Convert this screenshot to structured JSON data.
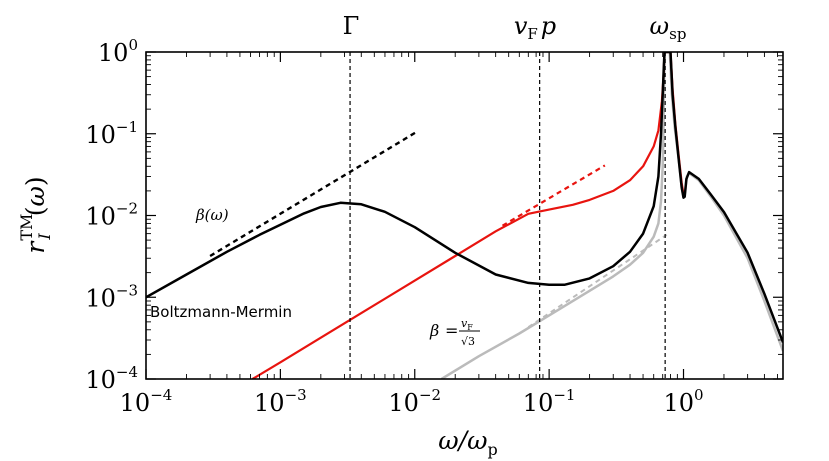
{
  "chart_data": {
    "type": "line",
    "x_scale": "log",
    "y_scale": "log",
    "xlim": [
      0.0001,
      5.5
    ],
    "ylim": [
      0.0001,
      1
    ],
    "xlabel": "ω/ω_p",
    "ylabel": "r_I^TM(ω)",
    "x_ticks": [
      {
        "value": 0.0001,
        "base": "10",
        "exp": "−4"
      },
      {
        "value": 0.001,
        "base": "10",
        "exp": "−3"
      },
      {
        "value": 0.01,
        "base": "10",
        "exp": "−2"
      },
      {
        "value": 0.1,
        "base": "10",
        "exp": "−1"
      },
      {
        "value": 1,
        "base": "10",
        "exp": "0"
      }
    ],
    "y_ticks": [
      {
        "value": 0.0001,
        "base": "10",
        "exp": "−4"
      },
      {
        "value": 0.001,
        "base": "10",
        "exp": "−3"
      },
      {
        "value": 0.01,
        "base": "10",
        "exp": "−2"
      },
      {
        "value": 0.1,
        "base": "10",
        "exp": "−1"
      },
      {
        "value": 1,
        "base": "10",
        "exp": "0"
      }
    ],
    "vlines": [
      {
        "x": 0.0033,
        "label": "Γ"
      },
      {
        "x": 0.085,
        "label": "v_F p"
      },
      {
        "x": 0.73,
        "label": "ω_sp"
      }
    ],
    "annotations": {
      "boltzmann": "Boltzmann-Mermin",
      "beta_omega": "β(ω)",
      "beta_const": "β = v_F/√3"
    },
    "series": [
      {
        "color": "#bbbbbb",
        "style": "solid",
        "width": 2.5,
        "points": [
          [
            0.0158,
            0.0001
          ],
          [
            0.03,
            0.00019
          ],
          [
            0.06,
            0.00036
          ],
          [
            0.1,
            0.0006
          ],
          [
            0.2,
            0.0012
          ],
          [
            0.3,
            0.0018
          ],
          [
            0.4,
            0.0025
          ],
          [
            0.5,
            0.0035
          ],
          [
            0.6,
            0.0055
          ],
          [
            0.65,
            0.008
          ],
          [
            0.68,
            0.015
          ],
          [
            0.7,
            0.04
          ],
          [
            0.71,
            0.12
          ],
          [
            0.718,
            0.45
          ],
          [
            0.726,
            1
          ],
          [
            0.79,
            1
          ],
          [
            0.82,
            0.3
          ],
          [
            0.86,
            0.12
          ],
          [
            0.92,
            0.05
          ],
          [
            0.97,
            0.022
          ],
          [
            1.0,
            0.017
          ],
          [
            1.02,
            0.018
          ],
          [
            1.06,
            0.03
          ],
          [
            1.1,
            0.033
          ],
          [
            1.3,
            0.027
          ],
          [
            1.6,
            0.017
          ],
          [
            2,
            0.01
          ],
          [
            3,
            0.003
          ],
          [
            4,
            0.0009
          ],
          [
            5.5,
            0.00022
          ]
        ]
      },
      {
        "color": "#bbbbbb",
        "style": "dashed",
        "width": 2,
        "points": [
          [
            0.07,
            0.00043
          ],
          [
            0.75,
            0.0058
          ]
        ]
      },
      {
        "color": "#e8140f",
        "style": "solid",
        "width": 2.2,
        "points": [
          [
            0.00062,
            0.0001
          ],
          [
            0.001,
            0.00016
          ],
          [
            0.002,
            0.00032
          ],
          [
            0.004,
            0.00064
          ],
          [
            0.01,
            0.0016
          ],
          [
            0.02,
            0.0032
          ],
          [
            0.04,
            0.0064
          ],
          [
            0.07,
            0.0105
          ],
          [
            0.1,
            0.0118
          ],
          [
            0.15,
            0.0135
          ],
          [
            0.2,
            0.0155
          ],
          [
            0.3,
            0.02
          ],
          [
            0.4,
            0.027
          ],
          [
            0.5,
            0.04
          ],
          [
            0.6,
            0.07
          ],
          [
            0.65,
            0.11
          ],
          [
            0.69,
            0.25
          ],
          [
            0.71,
            0.5
          ],
          [
            0.722,
            1
          ],
          [
            0.8,
            1
          ],
          [
            0.83,
            0.35
          ],
          [
            0.87,
            0.13
          ],
          [
            0.92,
            0.055
          ],
          [
            0.97,
            0.025
          ],
          [
            1.0,
            0.018
          ]
        ]
      },
      {
        "color": "#e8140f",
        "style": "dashed",
        "width": 2.2,
        "points": [
          [
            0.045,
            0.0075
          ],
          [
            0.26,
            0.041
          ]
        ]
      },
      {
        "color": "#000000",
        "style": "solid",
        "width": 2.5,
        "points": [
          [
            0.0001,
            0.001
          ],
          [
            0.0002,
            0.0019
          ],
          [
            0.0004,
            0.0036
          ],
          [
            0.0007,
            0.0058
          ],
          [
            0.001,
            0.0077
          ],
          [
            0.0015,
            0.0106
          ],
          [
            0.002,
            0.0127
          ],
          [
            0.0028,
            0.0143
          ],
          [
            0.004,
            0.0137
          ],
          [
            0.006,
            0.0111
          ],
          [
            0.01,
            0.0072
          ],
          [
            0.02,
            0.0035
          ],
          [
            0.04,
            0.0019
          ],
          [
            0.07,
            0.0015
          ],
          [
            0.1,
            0.00142
          ],
          [
            0.13,
            0.00142
          ],
          [
            0.2,
            0.0017
          ],
          [
            0.3,
            0.0024
          ],
          [
            0.4,
            0.0036
          ],
          [
            0.5,
            0.006
          ],
          [
            0.6,
            0.013
          ],
          [
            0.65,
            0.03
          ],
          [
            0.68,
            0.1
          ],
          [
            0.7,
            0.3
          ],
          [
            0.715,
            0.7
          ],
          [
            0.722,
            1
          ],
          [
            0.8,
            1
          ],
          [
            0.83,
            0.3
          ],
          [
            0.87,
            0.12
          ],
          [
            0.92,
            0.05
          ],
          [
            0.97,
            0.022
          ],
          [
            1.0,
            0.0165
          ],
          [
            1.02,
            0.017
          ],
          [
            1.05,
            0.028
          ],
          [
            1.1,
            0.034
          ],
          [
            1.3,
            0.028
          ],
          [
            1.6,
            0.018
          ],
          [
            2,
            0.011
          ],
          [
            3,
            0.0035
          ],
          [
            4,
            0.0011
          ],
          [
            5.5,
            0.00028
          ]
        ]
      },
      {
        "color": "#000000",
        "style": "dashed",
        "width": 2.4,
        "points": [
          [
            0.0003,
            0.0032
          ],
          [
            0.0105,
            0.107
          ]
        ]
      }
    ]
  }
}
